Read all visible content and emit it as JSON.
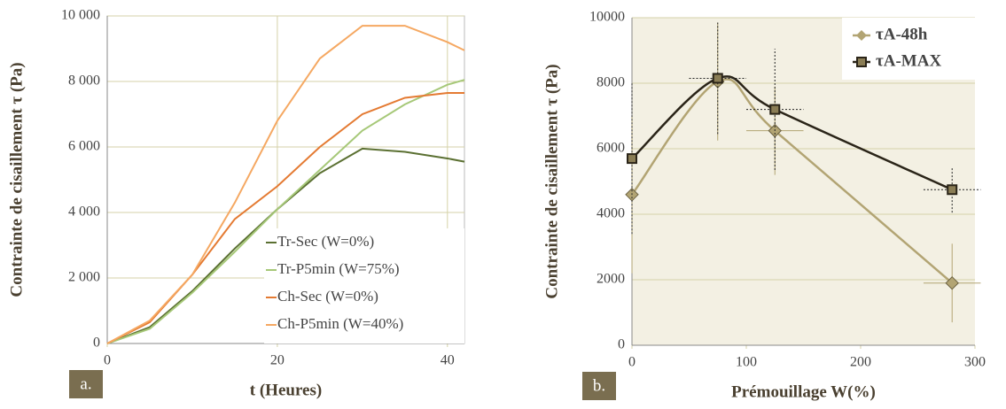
{
  "chart_data": [
    {
      "type": "line",
      "panel": "a.",
      "xlabel": "t (Heures)",
      "ylabel": "Contrainte de cisaillement τ (Pa)",
      "x": [
        0,
        5,
        10,
        15,
        20,
        25,
        30,
        35,
        40,
        42
      ],
      "xlim": [
        0,
        42
      ],
      "xticks": [
        0,
        20,
        40
      ],
      "ylim": [
        0,
        10000
      ],
      "yticks": [
        0,
        {
          "value": 2000,
          "label": "2 000"
        },
        {
          "value": 4000,
          "label": "4 000"
        },
        {
          "value": 6000,
          "label": "6 000"
        },
        {
          "value": 8000,
          "label": "8 000"
        },
        {
          "value": 10000,
          "label": "10 000"
        }
      ],
      "grid": true,
      "legend": "lower right",
      "series": [
        {
          "name": "Tr-Sec (W=0%)",
          "color": "#5b7032",
          "values": [
            0,
            500,
            1600,
            2900,
            4100,
            5200,
            5950,
            5850,
            5650,
            5550
          ]
        },
        {
          "name": "Tr-P5min (W=75%)",
          "color": "#a6c878",
          "values": [
            0,
            450,
            1550,
            2800,
            4100,
            5300,
            6500,
            7300,
            7900,
            8050
          ]
        },
        {
          "name": "Ch-Sec (W=0%)",
          "color": "#e47a32",
          "values": [
            0,
            650,
            2100,
            3800,
            4800,
            6000,
            7000,
            7500,
            7650,
            7650
          ]
        },
        {
          "name": "Ch-P5min (W=40%)",
          "color": "#f5a862",
          "values": [
            0,
            700,
            2100,
            4300,
            6800,
            8700,
            9700,
            9700,
            9200,
            8950
          ]
        }
      ]
    },
    {
      "type": "line",
      "panel": "b.",
      "xlabel": "Prémouillage W(%)",
      "ylabel": "Contrainte de cisaillement τ (Pa)",
      "x": [
        0,
        75,
        125,
        280
      ],
      "xlim": [
        0,
        300
      ],
      "xticks": [
        0,
        100,
        200,
        300
      ],
      "ylim": [
        0,
        10000
      ],
      "yticks": [
        0,
        2000,
        4000,
        6000,
        8000,
        10000
      ],
      "grid": true,
      "legend": "upper right",
      "series": [
        {
          "name": "τA-48h",
          "color": "#b2a473",
          "marker": "diamond",
          "values": [
            4600,
            8050,
            6550,
            1900
          ],
          "yerr": [
            2400,
            1800,
            1350,
            1200
          ],
          "xerr": [
            0,
            0,
            25,
            25
          ]
        },
        {
          "name": "τA-MAX",
          "color": "#2a2418",
          "marker": "square",
          "values": [
            5700,
            8150,
            7200,
            4750
          ],
          "yerr": [
            2300,
            1700,
            1850,
            700
          ],
          "xerr": [
            0,
            25,
            25,
            25
          ]
        }
      ]
    }
  ]
}
